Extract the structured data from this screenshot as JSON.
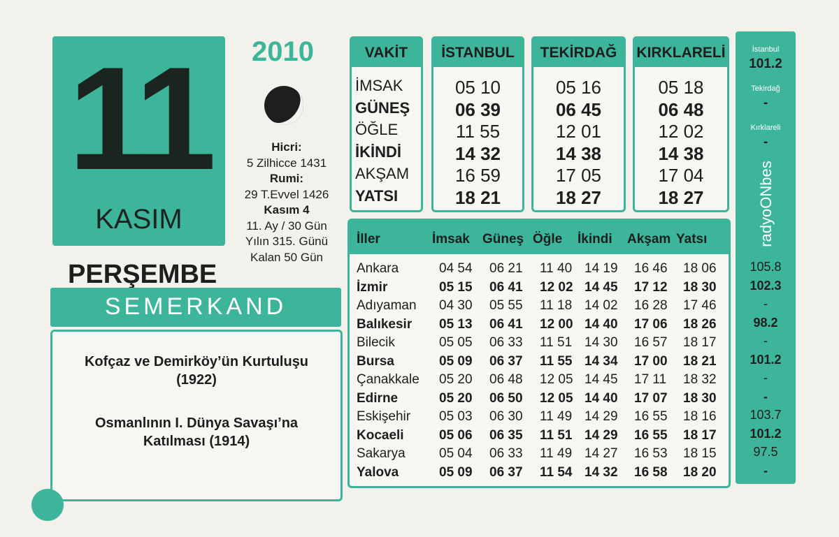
{
  "header": {
    "day": "11",
    "month": "KASIM",
    "year": "2010",
    "weekday": "PERŞEMBE",
    "brand": "SEMERKAND"
  },
  "info": [
    {
      "text": "Hicri:",
      "bold": true
    },
    {
      "text": "5 Zilhicce 1431",
      "bold": false
    },
    {
      "text": "Rumi:",
      "bold": true
    },
    {
      "text": "29 T.Evvel 1426",
      "bold": false
    },
    {
      "text": "Kasım 4",
      "bold": true
    },
    {
      "text": "11. Ay / 30 Gün",
      "bold": false
    },
    {
      "text": "Yılın 315. Günü",
      "bold": false
    },
    {
      "text": "Kalan 50 Gün",
      "bold": false
    }
  ],
  "events": [
    "Kofçaz ve Demirköy’ün Kurtuluşu (1922)",
    "Osmanlının I. Dünya Savaşı’na Katılması (1914)"
  ],
  "top_table": {
    "vakit_header": "VAKİT",
    "vakitler": [
      "İMSAK",
      "GÜNEŞ",
      "ÖĞLE",
      "İKİNDİ",
      "AKŞAM",
      "YATSI"
    ],
    "cities": [
      {
        "name": "İSTANBUL",
        "times": [
          "05 10",
          "06 39",
          "11 55",
          "14 32",
          "16 59",
          "18 21"
        ]
      },
      {
        "name": "TEKİRDAĞ",
        "times": [
          "05 16",
          "06 45",
          "12 01",
          "14 38",
          "17 05",
          "18 27"
        ]
      },
      {
        "name": "KIRKLARELİ",
        "times": [
          "05 18",
          "06 48",
          "12 02",
          "14 38",
          "17 04",
          "18 27"
        ]
      }
    ]
  },
  "bottom_table": {
    "header": [
      "İller",
      "İmsak",
      "Güneş",
      "Öğle",
      "İkindi",
      "Akşam",
      "Yatsı"
    ],
    "rows": [
      [
        "Ankara",
        "04 54",
        "06 21",
        "11 40",
        "14 19",
        "16 46",
        "18 06"
      ],
      [
        "İzmir",
        "05 15",
        "06 41",
        "12 02",
        "14 45",
        "17 12",
        "18 30"
      ],
      [
        "Adıyaman",
        "04 30",
        "05 55",
        "11 18",
        "14 02",
        "16 28",
        "17 46"
      ],
      [
        "Balıkesir",
        "05 13",
        "06 41",
        "12 00",
        "14 40",
        "17 06",
        "18 26"
      ],
      [
        "Bilecik",
        "05 05",
        "06 33",
        "11 51",
        "14 30",
        "16 57",
        "18 17"
      ],
      [
        "Bursa",
        "05 09",
        "06 37",
        "11 55",
        "14 34",
        "17 00",
        "18 21"
      ],
      [
        "Çanakkale",
        "05 20",
        "06 48",
        "12 05",
        "14 45",
        "17 11",
        "18 32"
      ],
      [
        "Edirne",
        "05 20",
        "06 50",
        "12 05",
        "14 40",
        "17 07",
        "18 30"
      ],
      [
        "Eskişehir",
        "05 03",
        "06 30",
        "11 49",
        "14 29",
        "16 55",
        "18 16"
      ],
      [
        "Kocaeli",
        "05 06",
        "06 35",
        "11 51",
        "14 29",
        "16 55",
        "18 17"
      ],
      [
        "Sakarya",
        "05 04",
        "06 33",
        "11 49",
        "14 27",
        "16 53",
        "18 15"
      ],
      [
        "Yalova",
        "05 09",
        "06 37",
        "11 54",
        "14 32",
        "16 58",
        "18 20"
      ]
    ]
  },
  "radio": {
    "logo": "radyoONbes",
    "top": [
      {
        "city": "İstanbul",
        "freq": "101.2"
      },
      {
        "city": "Tekirdağ",
        "freq": "-"
      },
      {
        "city": "Kırklareli",
        "freq": "-"
      }
    ],
    "rows": [
      "105.8",
      "102.3",
      "-",
      "98.2",
      "-",
      "101.2",
      "-",
      "-",
      "103.7",
      "101.2",
      "97.5",
      "-"
    ]
  }
}
